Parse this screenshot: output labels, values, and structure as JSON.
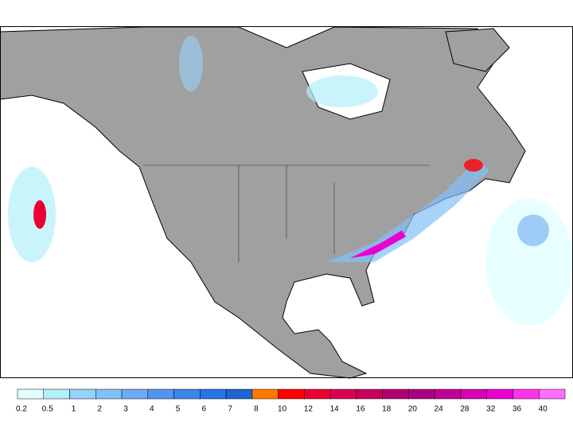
{
  "legend": {
    "labels": [
      "0.2",
      "0.5",
      "1",
      "2",
      "3",
      "4",
      "5",
      "6",
      "7",
      "8",
      "10",
      "12",
      "14",
      "16",
      "18",
      "20",
      "24",
      "28",
      "32",
      "36",
      "40"
    ],
    "colors": [
      "#e1ffff",
      "#b4f0fa",
      "#96d2fa",
      "#82c0fa",
      "#6eaaf5",
      "#5096f0",
      "#3c85eb",
      "#2873e6",
      "#1e64d2",
      "#ff7800",
      "#ff0000",
      "#eb0032",
      "#dc0050",
      "#c8005a",
      "#b4006e",
      "#aa0082",
      "#c30096",
      "#d700b4",
      "#eb00d2",
      "#ff32eb",
      "#ff6eff"
    ]
  }
}
